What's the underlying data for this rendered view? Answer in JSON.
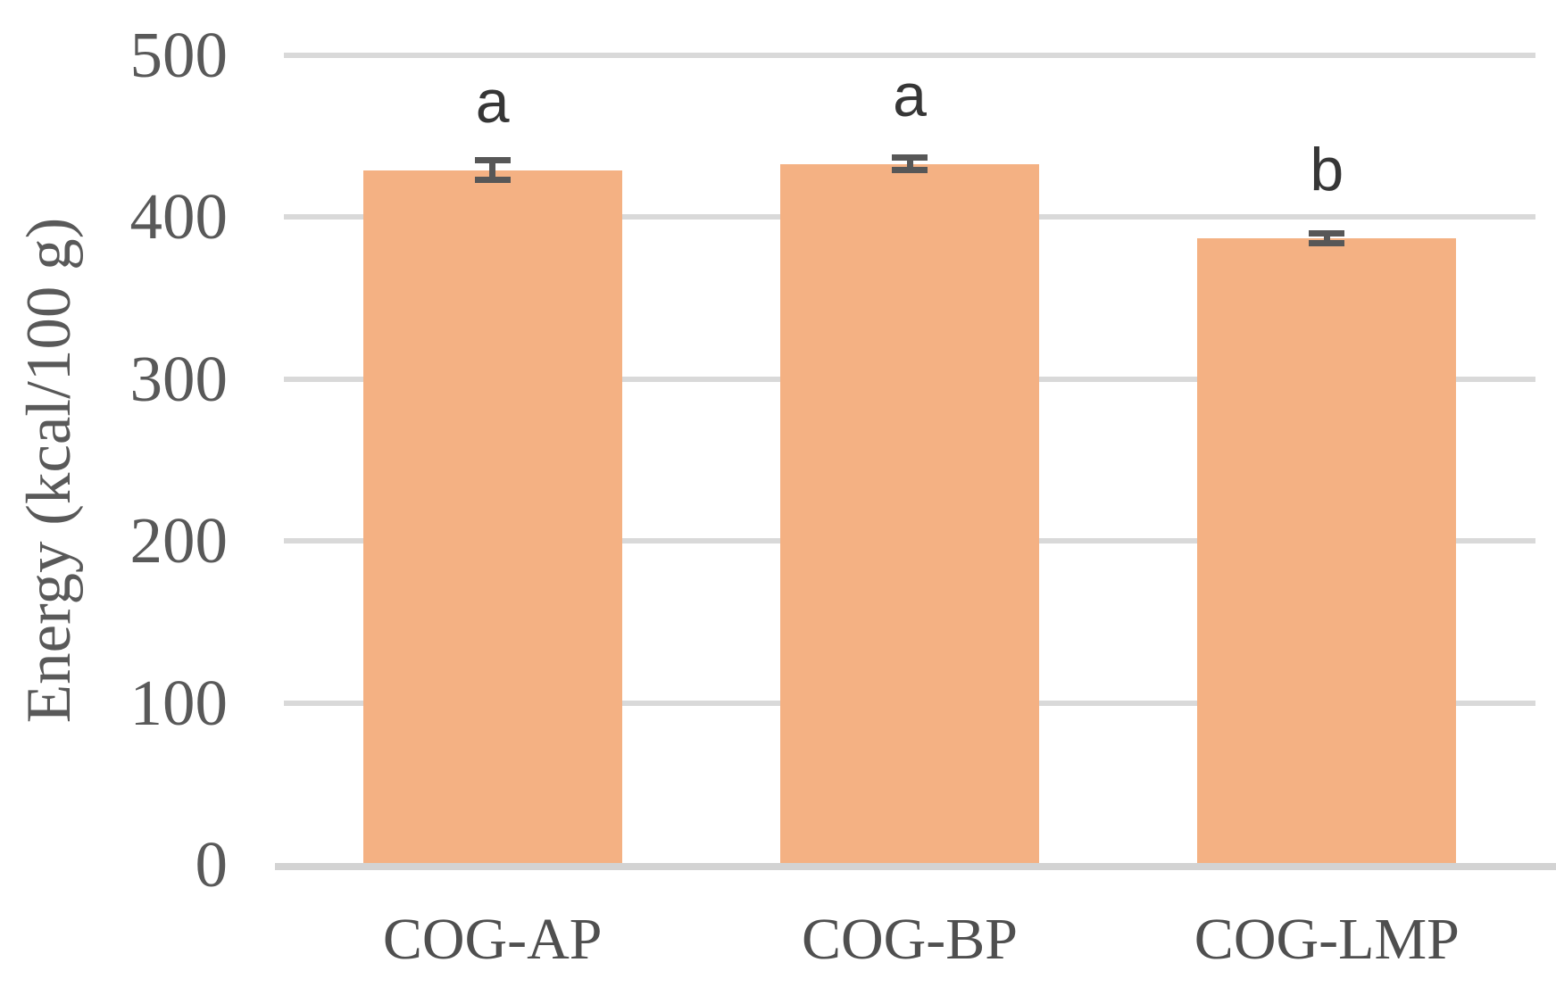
{
  "chart_data": {
    "type": "bar",
    "categories": [
      "COG-AP",
      "COG-BP",
      "COG-LMP"
    ],
    "values": [
      429,
      433,
      387
    ],
    "errors": [
      6,
      4,
      3
    ],
    "sig_letters": [
      "a",
      "a",
      "b"
    ],
    "title": "",
    "xlabel": "",
    "ylabel": "Energy (kcal/100 g)",
    "ylim": [
      0,
      500
    ],
    "yticks": [
      0,
      100,
      200,
      300,
      400,
      500
    ],
    "grid": "horizontal-only",
    "legend": "none",
    "colors": {
      "bar": "#F4B183",
      "gridline": "#D9D9D9",
      "axis_line": "#D3D3D3",
      "tick_text": "#595959",
      "category_text": "#4F4F4F",
      "axis_title_text": "#595959",
      "sig_letter_text": "#363636",
      "error_bar": "#575757"
    }
  }
}
